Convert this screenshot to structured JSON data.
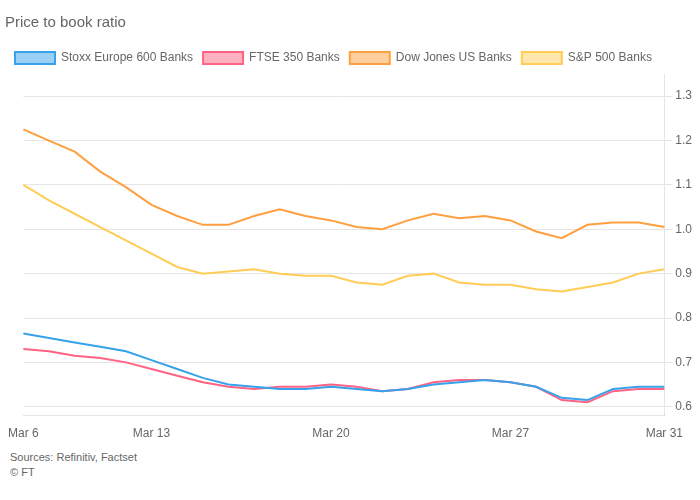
{
  "chart_data": {
    "type": "line",
    "title": "Price to book ratio",
    "categories": [
      "Mar 6",
      null,
      null,
      null,
      null,
      "Mar 13",
      null,
      null,
      null,
      null,
      null,
      null,
      "Mar 20",
      null,
      null,
      null,
      null,
      null,
      null,
      "Mar 27",
      null,
      null,
      null,
      null,
      null,
      "Mar 31"
    ],
    "series": [
      {
        "name": "Stoxx Europe 600 Banks",
        "values": [
          0.765,
          0.755,
          0.745,
          0.735,
          0.725,
          0.705,
          0.685,
          0.665,
          0.65,
          0.645,
          0.64,
          0.64,
          0.645,
          0.64,
          0.635,
          0.64,
          0.65,
          0.655,
          0.66,
          0.655,
          0.645,
          0.62,
          0.615,
          0.64,
          0.645,
          0.645
        ]
      },
      {
        "name": "FTSE 350 Banks",
        "values": [
          0.73,
          0.725,
          0.715,
          0.71,
          0.7,
          0.685,
          0.67,
          0.655,
          0.645,
          0.64,
          0.645,
          0.645,
          0.65,
          0.645,
          0.635,
          0.64,
          0.655,
          0.66,
          0.66,
          0.655,
          0.645,
          0.615,
          0.61,
          0.635,
          0.64,
          0.64
        ]
      },
      {
        "name": "Dow Jones US Banks",
        "values": [
          1.225,
          1.2,
          1.175,
          1.13,
          1.095,
          1.055,
          1.03,
          1.01,
          1.01,
          1.03,
          1.045,
          1.03,
          1.02,
          1.005,
          1.0,
          1.02,
          1.035,
          1.025,
          1.03,
          1.02,
          0.995,
          0.98,
          1.01,
          1.015,
          1.015,
          1.005
        ]
      },
      {
        "name": "S&P 500 Banks",
        "values": [
          1.1,
          1.065,
          1.035,
          1.005,
          0.975,
          0.945,
          0.915,
          0.9,
          0.905,
          0.91,
          0.9,
          0.895,
          0.895,
          0.88,
          0.875,
          0.895,
          0.9,
          0.88,
          0.875,
          0.875,
          0.865,
          0.86,
          0.87,
          0.88,
          0.9,
          0.91
        ]
      }
    ],
    "ylim": [
      0.58,
      1.35
    ],
    "yticks": [
      0.6,
      0.7,
      0.8,
      0.9,
      {
        "value": 1.0,
        "label": "1.0"
      },
      1.1,
      1.2,
      1.3
    ],
    "grid": true,
    "legend": "upper left",
    "annotations": [
      "Sources: Refinitiv, Factset",
      "© FT"
    ]
  }
}
